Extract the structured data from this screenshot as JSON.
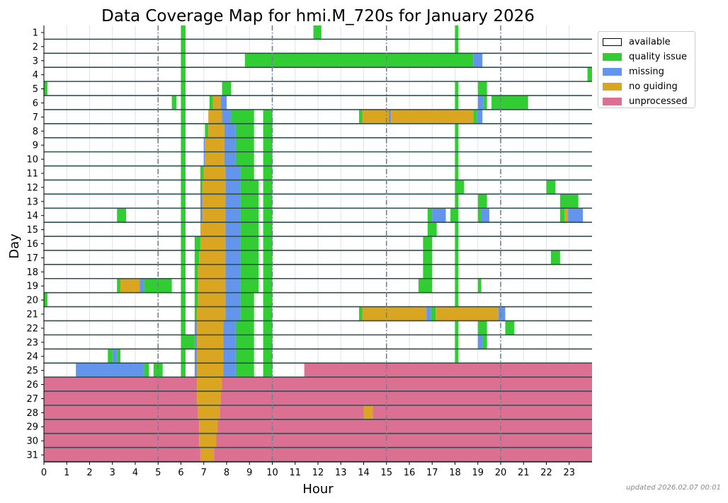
{
  "chart_data": {
    "type": "heatmap",
    "title": "Data Coverage Map for hmi.M_720s for January 2026",
    "xlabel": "Hour",
    "ylabel": "Day",
    "xlim": [
      0,
      24
    ],
    "x_ticks": [
      "0",
      "1",
      "2",
      "3",
      "4",
      "5",
      "6",
      "7",
      "8",
      "9",
      "10",
      "11",
      "12",
      "13",
      "14",
      "15",
      "16",
      "17",
      "18",
      "19",
      "20",
      "21",
      "22",
      "23"
    ],
    "y_ticks": [
      "1",
      "2",
      "3",
      "4",
      "5",
      "6",
      "7",
      "8",
      "9",
      "10",
      "11",
      "12",
      "13",
      "14",
      "15",
      "16",
      "17",
      "18",
      "19",
      "20",
      "21",
      "22",
      "23",
      "24",
      "25",
      "26",
      "27",
      "28",
      "29",
      "30",
      "31"
    ],
    "dashed_vlines": [
      5,
      10,
      15,
      20
    ],
    "grid": true,
    "legend_position": "upper-right-outside",
    "categories": [
      {
        "key": "available",
        "label": "available",
        "color": "#ffffff"
      },
      {
        "key": "quality",
        "label": "quality issue",
        "color": "#32cd32"
      },
      {
        "key": "missing",
        "label": "missing",
        "color": "#6495ed"
      },
      {
        "key": "noguiding",
        "label": "no guiding",
        "color": "#daa520"
      },
      {
        "key": "unprocessed",
        "label": "unprocessed",
        "color": "#db7093"
      }
    ],
    "day_segments": {
      "1": [
        [
          6.0,
          6.2,
          "quality"
        ],
        [
          11.8,
          12.15,
          "quality"
        ],
        [
          18.0,
          18.15,
          "quality"
        ]
      ],
      "2": [
        [
          6.0,
          6.2,
          "quality"
        ],
        [
          18.0,
          18.15,
          "quality"
        ]
      ],
      "3": [
        [
          6.0,
          6.2,
          "quality"
        ],
        [
          8.8,
          18.8,
          "quality"
        ],
        [
          18.8,
          19.2,
          "missing"
        ]
      ],
      "4": [
        [
          6.0,
          6.2,
          "quality"
        ],
        [
          23.8,
          24.0,
          "quality"
        ]
      ],
      "5": [
        [
          0.0,
          0.15,
          "quality"
        ],
        [
          6.0,
          6.2,
          "quality"
        ],
        [
          7.8,
          8.2,
          "quality"
        ],
        [
          18.0,
          18.15,
          "quality"
        ],
        [
          19.0,
          19.4,
          "quality"
        ]
      ],
      "6": [
        [
          5.6,
          5.8,
          "quality"
        ],
        [
          6.0,
          6.2,
          "quality"
        ],
        [
          7.25,
          7.4,
          "quality"
        ],
        [
          7.4,
          7.75,
          "noguiding"
        ],
        [
          7.75,
          8.0,
          "missing"
        ],
        [
          18.0,
          18.15,
          "quality"
        ],
        [
          19.0,
          19.25,
          "missing"
        ],
        [
          19.25,
          19.4,
          "quality"
        ],
        [
          19.6,
          21.2,
          "quality"
        ]
      ],
      "7": [
        [
          6.0,
          6.2,
          "quality"
        ],
        [
          7.2,
          7.8,
          "noguiding"
        ],
        [
          7.8,
          8.2,
          "missing"
        ],
        [
          8.2,
          9.2,
          "quality"
        ],
        [
          9.6,
          10.0,
          "quality"
        ],
        [
          13.8,
          13.95,
          "quality"
        ],
        [
          13.95,
          15.1,
          "noguiding"
        ],
        [
          15.1,
          15.2,
          "missing"
        ],
        [
          15.2,
          18.8,
          "noguiding"
        ],
        [
          18.8,
          18.95,
          "quality"
        ],
        [
          18.95,
          19.2,
          "missing"
        ]
      ],
      "8": [
        [
          6.0,
          6.2,
          "quality"
        ],
        [
          7.05,
          7.2,
          "quality"
        ],
        [
          7.2,
          7.9,
          "noguiding"
        ],
        [
          7.9,
          8.4,
          "missing"
        ],
        [
          8.4,
          9.2,
          "quality"
        ],
        [
          9.6,
          10.0,
          "quality"
        ],
        [
          18.0,
          18.15,
          "quality"
        ]
      ],
      "9": [
        [
          6.0,
          6.2,
          "quality"
        ],
        [
          7.0,
          7.05,
          "missing"
        ],
        [
          7.05,
          7.9,
          "noguiding"
        ],
        [
          7.9,
          8.4,
          "missing"
        ],
        [
          8.4,
          9.2,
          "quality"
        ],
        [
          9.6,
          10.0,
          "quality"
        ],
        [
          18.0,
          18.15,
          "quality"
        ]
      ],
      "10": [
        [
          6.0,
          6.2,
          "quality"
        ],
        [
          7.0,
          7.05,
          "missing"
        ],
        [
          7.05,
          7.9,
          "noguiding"
        ],
        [
          7.9,
          8.4,
          "missing"
        ],
        [
          8.4,
          9.2,
          "quality"
        ],
        [
          9.6,
          10.0,
          "quality"
        ],
        [
          18.0,
          18.15,
          "quality"
        ]
      ],
      "11": [
        [
          6.0,
          6.2,
          "quality"
        ],
        [
          6.85,
          7.0,
          "quality"
        ],
        [
          7.0,
          7.95,
          "noguiding"
        ],
        [
          7.95,
          8.6,
          "missing"
        ],
        [
          8.6,
          9.2,
          "quality"
        ],
        [
          9.6,
          10.0,
          "quality"
        ],
        [
          18.0,
          18.15,
          "quality"
        ]
      ],
      "12": [
        [
          6.0,
          6.2,
          "quality"
        ],
        [
          6.85,
          6.95,
          "quality"
        ],
        [
          6.95,
          7.95,
          "noguiding"
        ],
        [
          7.95,
          8.6,
          "missing"
        ],
        [
          8.6,
          9.4,
          "quality"
        ],
        [
          9.6,
          10.0,
          "quality"
        ],
        [
          18.0,
          18.4,
          "quality"
        ],
        [
          22.0,
          22.4,
          "quality"
        ]
      ],
      "13": [
        [
          6.0,
          6.2,
          "quality"
        ],
        [
          6.85,
          6.95,
          "missing"
        ],
        [
          6.95,
          7.95,
          "noguiding"
        ],
        [
          7.95,
          8.6,
          "missing"
        ],
        [
          8.6,
          9.4,
          "quality"
        ],
        [
          9.6,
          10.0,
          "quality"
        ],
        [
          18.0,
          18.15,
          "quality"
        ],
        [
          19.0,
          19.4,
          "quality"
        ],
        [
          22.6,
          23.4,
          "quality"
        ]
      ],
      "14": [
        [
          3.2,
          3.6,
          "quality"
        ],
        [
          6.0,
          6.2,
          "quality"
        ],
        [
          6.85,
          6.95,
          "missing"
        ],
        [
          6.95,
          7.95,
          "noguiding"
        ],
        [
          7.95,
          8.6,
          "missing"
        ],
        [
          8.6,
          9.4,
          "quality"
        ],
        [
          9.6,
          10.0,
          "quality"
        ],
        [
          16.8,
          17.0,
          "quality"
        ],
        [
          17.0,
          17.6,
          "missing"
        ],
        [
          17.8,
          18.15,
          "quality"
        ],
        [
          19.0,
          19.15,
          "quality"
        ],
        [
          19.15,
          19.5,
          "missing"
        ],
        [
          22.6,
          22.8,
          "quality"
        ],
        [
          22.8,
          22.95,
          "noguiding"
        ],
        [
          22.95,
          23.6,
          "missing"
        ]
      ],
      "15": [
        [
          6.0,
          6.2,
          "quality"
        ],
        [
          6.85,
          7.95,
          "noguiding"
        ],
        [
          7.95,
          8.6,
          "missing"
        ],
        [
          8.6,
          9.4,
          "quality"
        ],
        [
          9.6,
          10.0,
          "quality"
        ],
        [
          16.8,
          17.2,
          "quality"
        ],
        [
          18.0,
          18.15,
          "quality"
        ]
      ],
      "16": [
        [
          6.0,
          6.2,
          "quality"
        ],
        [
          6.6,
          6.85,
          "quality"
        ],
        [
          6.85,
          7.95,
          "noguiding"
        ],
        [
          7.95,
          8.6,
          "missing"
        ],
        [
          8.6,
          9.4,
          "quality"
        ],
        [
          9.6,
          10.0,
          "quality"
        ],
        [
          16.6,
          17.0,
          "quality"
        ],
        [
          18.0,
          18.15,
          "quality"
        ]
      ],
      "17": [
        [
          6.0,
          6.2,
          "quality"
        ],
        [
          6.6,
          6.8,
          "quality"
        ],
        [
          6.8,
          7.95,
          "noguiding"
        ],
        [
          7.95,
          8.6,
          "missing"
        ],
        [
          8.6,
          9.4,
          "quality"
        ],
        [
          9.6,
          10.0,
          "quality"
        ],
        [
          16.6,
          17.0,
          "quality"
        ],
        [
          18.0,
          18.15,
          "quality"
        ],
        [
          22.2,
          22.6,
          "quality"
        ]
      ],
      "18": [
        [
          6.0,
          6.2,
          "quality"
        ],
        [
          6.6,
          6.75,
          "quality"
        ],
        [
          6.75,
          7.95,
          "noguiding"
        ],
        [
          7.95,
          8.6,
          "missing"
        ],
        [
          8.6,
          9.4,
          "quality"
        ],
        [
          9.6,
          10.0,
          "quality"
        ],
        [
          16.6,
          17.0,
          "quality"
        ],
        [
          18.0,
          18.15,
          "quality"
        ]
      ],
      "19": [
        [
          3.2,
          3.35,
          "quality"
        ],
        [
          3.35,
          4.2,
          "noguiding"
        ],
        [
          4.2,
          4.4,
          "missing"
        ],
        [
          4.4,
          5.6,
          "quality"
        ],
        [
          6.0,
          6.2,
          "quality"
        ],
        [
          6.6,
          6.75,
          "quality"
        ],
        [
          6.75,
          7.95,
          "noguiding"
        ],
        [
          7.95,
          8.6,
          "missing"
        ],
        [
          8.6,
          9.4,
          "quality"
        ],
        [
          9.6,
          10.0,
          "quality"
        ],
        [
          16.4,
          17.0,
          "quality"
        ],
        [
          18.0,
          18.15,
          "quality"
        ],
        [
          19.0,
          19.15,
          "quality"
        ]
      ],
      "20": [
        [
          0.0,
          0.15,
          "quality"
        ],
        [
          6.0,
          6.2,
          "quality"
        ],
        [
          6.6,
          6.75,
          "quality"
        ],
        [
          6.75,
          7.95,
          "noguiding"
        ],
        [
          7.95,
          8.6,
          "missing"
        ],
        [
          8.6,
          9.2,
          "quality"
        ],
        [
          9.6,
          10.0,
          "quality"
        ],
        [
          18.0,
          18.15,
          "quality"
        ]
      ],
      "21": [
        [
          6.0,
          6.2,
          "quality"
        ],
        [
          6.6,
          6.7,
          "quality"
        ],
        [
          6.7,
          7.95,
          "noguiding"
        ],
        [
          7.95,
          8.6,
          "missing"
        ],
        [
          8.6,
          9.2,
          "quality"
        ],
        [
          9.6,
          10.0,
          "quality"
        ],
        [
          13.8,
          13.95,
          "quality"
        ],
        [
          13.95,
          16.75,
          "noguiding"
        ],
        [
          16.75,
          16.95,
          "missing"
        ],
        [
          16.95,
          17.15,
          "quality"
        ],
        [
          17.15,
          19.9,
          "noguiding"
        ],
        [
          19.9,
          20.2,
          "missing"
        ]
      ],
      "22": [
        [
          6.0,
          6.2,
          "quality"
        ],
        [
          6.6,
          6.7,
          "missing"
        ],
        [
          6.7,
          7.85,
          "noguiding"
        ],
        [
          7.85,
          8.4,
          "missing"
        ],
        [
          8.4,
          9.2,
          "quality"
        ],
        [
          9.6,
          10.0,
          "quality"
        ],
        [
          18.0,
          18.15,
          "quality"
        ],
        [
          19.0,
          19.4,
          "quality"
        ],
        [
          20.2,
          20.6,
          "quality"
        ]
      ],
      "23": [
        [
          6.0,
          6.6,
          "quality"
        ],
        [
          6.6,
          6.7,
          "missing"
        ],
        [
          6.7,
          7.85,
          "noguiding"
        ],
        [
          7.85,
          8.4,
          "missing"
        ],
        [
          8.4,
          9.2,
          "quality"
        ],
        [
          9.6,
          10.0,
          "quality"
        ],
        [
          18.0,
          18.15,
          "quality"
        ],
        [
          19.0,
          19.2,
          "missing"
        ],
        [
          19.2,
          19.4,
          "quality"
        ]
      ],
      "24": [
        [
          2.8,
          3.0,
          "quality"
        ],
        [
          3.0,
          3.2,
          "missing"
        ],
        [
          3.2,
          3.35,
          "quality"
        ],
        [
          6.0,
          6.2,
          "quality"
        ],
        [
          6.6,
          6.7,
          "missing"
        ],
        [
          6.7,
          7.85,
          "noguiding"
        ],
        [
          7.85,
          8.4,
          "missing"
        ],
        [
          8.4,
          9.2,
          "quality"
        ],
        [
          9.6,
          10.0,
          "quality"
        ],
        [
          18.0,
          18.15,
          "quality"
        ]
      ],
      "25": [
        [
          1.4,
          4.4,
          "missing"
        ],
        [
          4.4,
          4.6,
          "quality"
        ],
        [
          4.8,
          5.2,
          "quality"
        ],
        [
          6.0,
          6.2,
          "quality"
        ],
        [
          6.6,
          6.7,
          "missing"
        ],
        [
          6.7,
          7.85,
          "noguiding"
        ],
        [
          7.85,
          8.4,
          "missing"
        ],
        [
          8.4,
          9.2,
          "quality"
        ],
        [
          9.6,
          10.0,
          "quality"
        ],
        [
          11.4,
          24.0,
          "unprocessed"
        ]
      ],
      "26": [
        [
          0.0,
          6.7,
          "unprocessed"
        ],
        [
          6.7,
          7.8,
          "noguiding"
        ],
        [
          7.8,
          24.0,
          "unprocessed"
        ]
      ],
      "27": [
        [
          0.0,
          6.7,
          "unprocessed"
        ],
        [
          6.7,
          7.75,
          "noguiding"
        ],
        [
          7.75,
          24.0,
          "unprocessed"
        ]
      ],
      "28": [
        [
          0.0,
          6.75,
          "unprocessed"
        ],
        [
          6.75,
          7.7,
          "noguiding"
        ],
        [
          7.7,
          14.0,
          "unprocessed"
        ],
        [
          14.0,
          14.4,
          "noguiding"
        ],
        [
          14.4,
          24.0,
          "unprocessed"
        ]
      ],
      "29": [
        [
          0.0,
          6.8,
          "unprocessed"
        ],
        [
          6.8,
          7.6,
          "noguiding"
        ],
        [
          7.6,
          24.0,
          "unprocessed"
        ]
      ],
      "30": [
        [
          0.0,
          6.8,
          "unprocessed"
        ],
        [
          6.8,
          7.55,
          "noguiding"
        ],
        [
          7.55,
          24.0,
          "unprocessed"
        ]
      ],
      "31": [
        [
          0.0,
          6.85,
          "unprocessed"
        ],
        [
          6.85,
          7.45,
          "noguiding"
        ],
        [
          7.45,
          24.0,
          "unprocessed"
        ]
      ]
    }
  },
  "footer": {
    "updated_text": "updated 2026.02.07 00:01"
  }
}
